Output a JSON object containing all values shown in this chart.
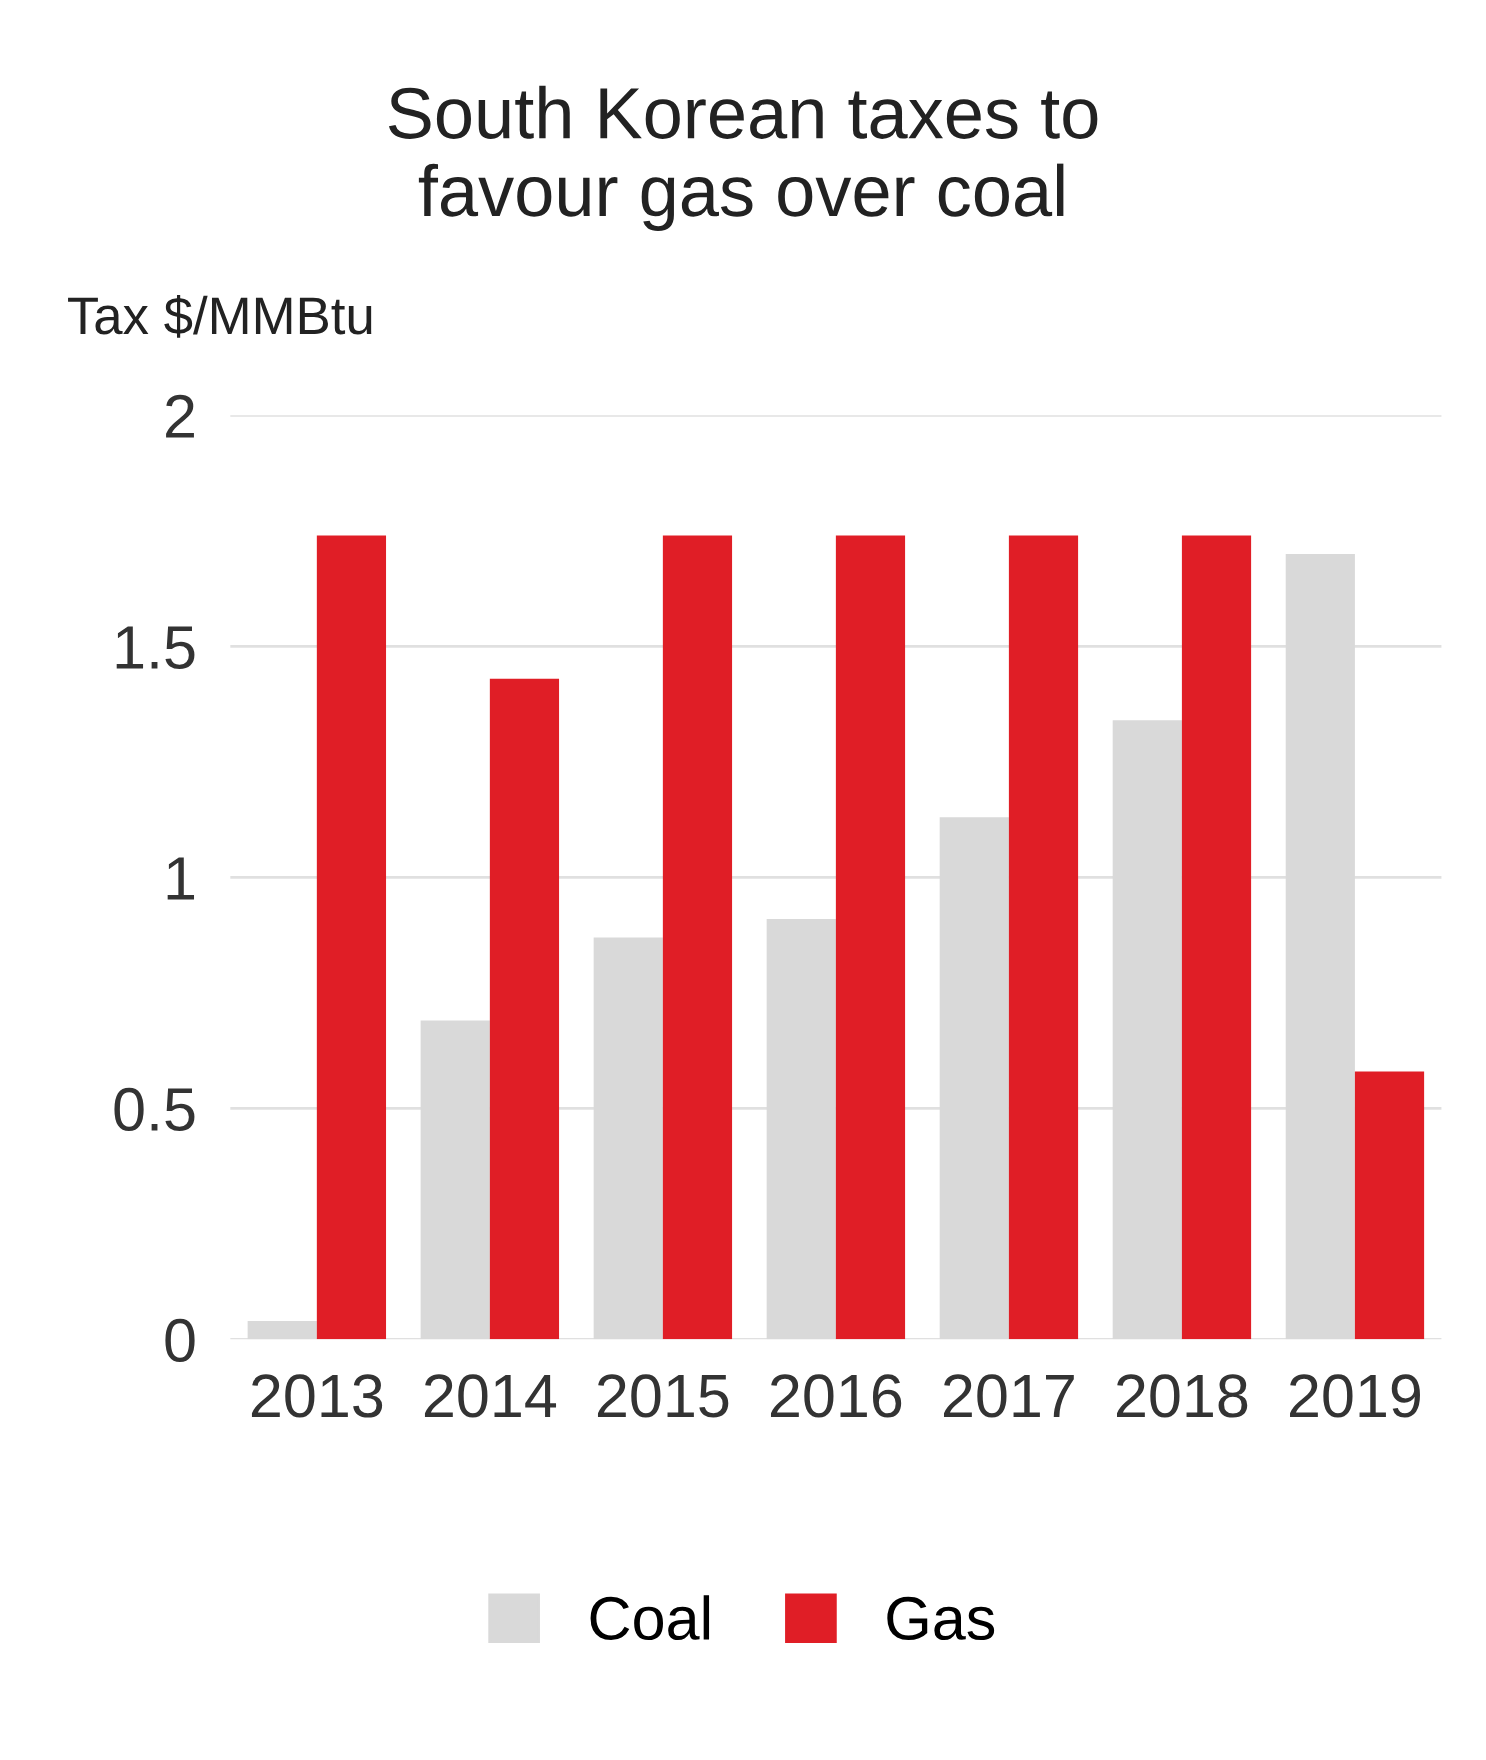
{
  "chart_data": {
    "type": "bar",
    "title": "South Korean taxes to\nfavour gas over coal",
    "ylabel": "Tax $/MMBtu",
    "categories": [
      "2013",
      "2014",
      "2015",
      "2016",
      "2017",
      "2018",
      "2019"
    ],
    "series": [
      {
        "name": "Coal",
        "color": "#d9d9d9",
        "values": [
          0.04,
          0.69,
          0.87,
          0.91,
          1.13,
          1.34,
          1.7
        ]
      },
      {
        "name": "Gas",
        "color": "#e01e26",
        "values": [
          1.74,
          1.43,
          1.74,
          1.74,
          1.74,
          1.74,
          0.58
        ]
      }
    ],
    "ylim": [
      0,
      2
    ],
    "yticks": [
      0,
      0.5,
      1,
      1.5,
      2
    ],
    "grid": "y",
    "legend": "bottom"
  }
}
